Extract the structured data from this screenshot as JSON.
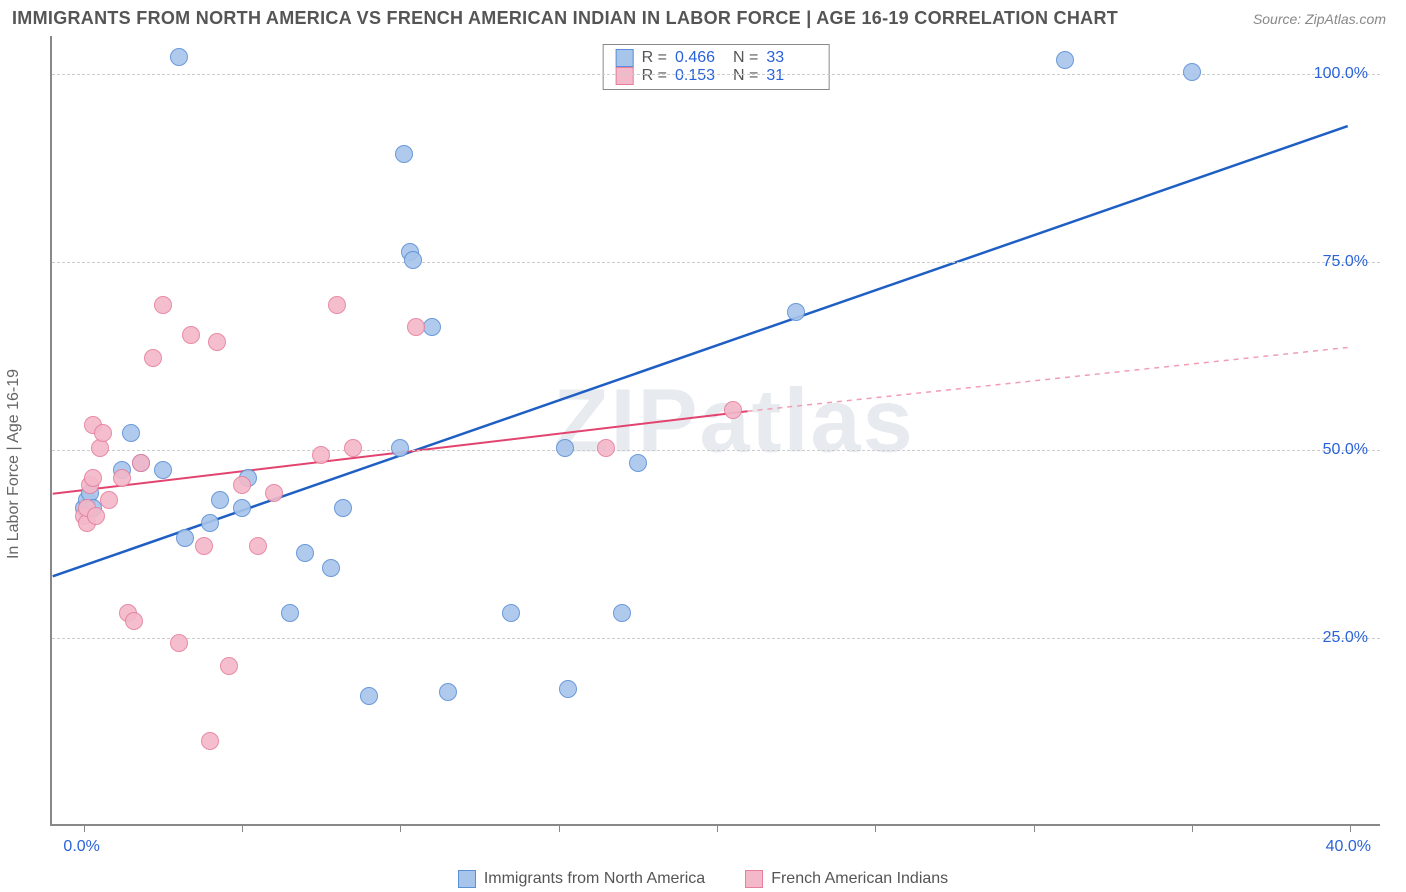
{
  "title": "IMMIGRANTS FROM NORTH AMERICA VS FRENCH AMERICAN INDIAN IN LABOR FORCE | AGE 16-19 CORRELATION CHART",
  "source": "Source: ZipAtlas.com",
  "watermark": "ZIPatlas",
  "y_axis_title": "In Labor Force | Age 16-19",
  "chart": {
    "type": "scatter",
    "background_color": "#ffffff",
    "grid_color": "#cccccc",
    "axis_color": "#888888",
    "tick_label_color": "#2962d9",
    "tick_fontsize": 16,
    "xlim": [
      -1,
      41
    ],
    "ylim": [
      0,
      105
    ],
    "x_ticks": [
      0,
      5,
      10,
      15,
      20,
      25,
      30,
      35,
      40
    ],
    "x_tick_labels": {
      "0": "0.0%",
      "40": "40.0%"
    },
    "y_gridlines": [
      25,
      50,
      75,
      100
    ],
    "y_tick_labels": {
      "25": "25.0%",
      "50": "50.0%",
      "75": "75.0%",
      "100": "100.0%"
    },
    "point_radius": 9,
    "point_fill_opacity": 0.35,
    "series": [
      {
        "name": "Immigrants from North America",
        "color_stroke": "#5b8fd6",
        "color_fill": "#a7c5ea",
        "R": "0.466",
        "N": "33",
        "trend": {
          "x1": -1,
          "y1": 33,
          "x2": 40,
          "y2": 93,
          "stroke": "#1f5fc4",
          "width": 2.5,
          "dash": ""
        },
        "points": [
          {
            "x": 0.0,
            "y": 42
          },
          {
            "x": 0.1,
            "y": 43
          },
          {
            "x": 0.2,
            "y": 44
          },
          {
            "x": 0.3,
            "y": 42
          },
          {
            "x": 1.2,
            "y": 47
          },
          {
            "x": 1.5,
            "y": 52
          },
          {
            "x": 1.8,
            "y": 48
          },
          {
            "x": 2.5,
            "y": 47
          },
          {
            "x": 3.0,
            "y": 102
          },
          {
            "x": 3.2,
            "y": 38
          },
          {
            "x": 4.0,
            "y": 40
          },
          {
            "x": 4.3,
            "y": 43
          },
          {
            "x": 5.0,
            "y": 42
          },
          {
            "x": 5.2,
            "y": 46
          },
          {
            "x": 6.5,
            "y": 28
          },
          {
            "x": 7.0,
            "y": 36
          },
          {
            "x": 7.8,
            "y": 34
          },
          {
            "x": 8.2,
            "y": 42
          },
          {
            "x": 9.0,
            "y": 17
          },
          {
            "x": 10.0,
            "y": 50
          },
          {
            "x": 10.1,
            "y": 89
          },
          {
            "x": 10.3,
            "y": 76
          },
          {
            "x": 10.4,
            "y": 75
          },
          {
            "x": 11.0,
            "y": 66
          },
          {
            "x": 11.5,
            "y": 17.5
          },
          {
            "x": 13.5,
            "y": 28
          },
          {
            "x": 15.2,
            "y": 50
          },
          {
            "x": 15.3,
            "y": 18
          },
          {
            "x": 17.0,
            "y": 28
          },
          {
            "x": 17.5,
            "y": 48
          },
          {
            "x": 22.5,
            "y": 68
          },
          {
            "x": 31.0,
            "y": 101.5
          },
          {
            "x": 35.0,
            "y": 100
          }
        ]
      },
      {
        "name": "French American Indians",
        "color_stroke": "#e67f9c",
        "color_fill": "#f3b8c9",
        "R": "0.153",
        "N": "31",
        "trend_solid": {
          "x1": -1,
          "y1": 44,
          "x2": 21,
          "y2": 55,
          "stroke": "#e2446f",
          "width": 2,
          "dash": ""
        },
        "trend_dash": {
          "x1": 21,
          "y1": 55,
          "x2": 40,
          "y2": 63.5,
          "stroke": "#f29db4",
          "width": 1.5,
          "dash": "5,5"
        },
        "points": [
          {
            "x": 0.0,
            "y": 41
          },
          {
            "x": 0.1,
            "y": 40
          },
          {
            "x": 0.1,
            "y": 42
          },
          {
            "x": 0.2,
            "y": 45
          },
          {
            "x": 0.3,
            "y": 53
          },
          {
            "x": 0.3,
            "y": 46
          },
          {
            "x": 0.4,
            "y": 41
          },
          {
            "x": 0.5,
            "y": 50
          },
          {
            "x": 0.6,
            "y": 52
          },
          {
            "x": 0.8,
            "y": 43
          },
          {
            "x": 1.2,
            "y": 46
          },
          {
            "x": 1.4,
            "y": 28
          },
          {
            "x": 1.6,
            "y": 27
          },
          {
            "x": 1.8,
            "y": 48
          },
          {
            "x": 2.2,
            "y": 62
          },
          {
            "x": 2.5,
            "y": 69
          },
          {
            "x": 3.0,
            "y": 24
          },
          {
            "x": 3.4,
            "y": 65
          },
          {
            "x": 3.8,
            "y": 37
          },
          {
            "x": 4.0,
            "y": 11
          },
          {
            "x": 4.2,
            "y": 64
          },
          {
            "x": 4.6,
            "y": 21
          },
          {
            "x": 5.0,
            "y": 45
          },
          {
            "x": 5.5,
            "y": 37
          },
          {
            "x": 6.0,
            "y": 44
          },
          {
            "x": 7.5,
            "y": 49
          },
          {
            "x": 8.0,
            "y": 69
          },
          {
            "x": 8.5,
            "y": 50
          },
          {
            "x": 10.5,
            "y": 66
          },
          {
            "x": 16.5,
            "y": 50
          },
          {
            "x": 20.5,
            "y": 55
          }
        ]
      }
    ]
  },
  "legend": {
    "series1_label": "Immigrants from North America",
    "series2_label": "French American Indians"
  }
}
